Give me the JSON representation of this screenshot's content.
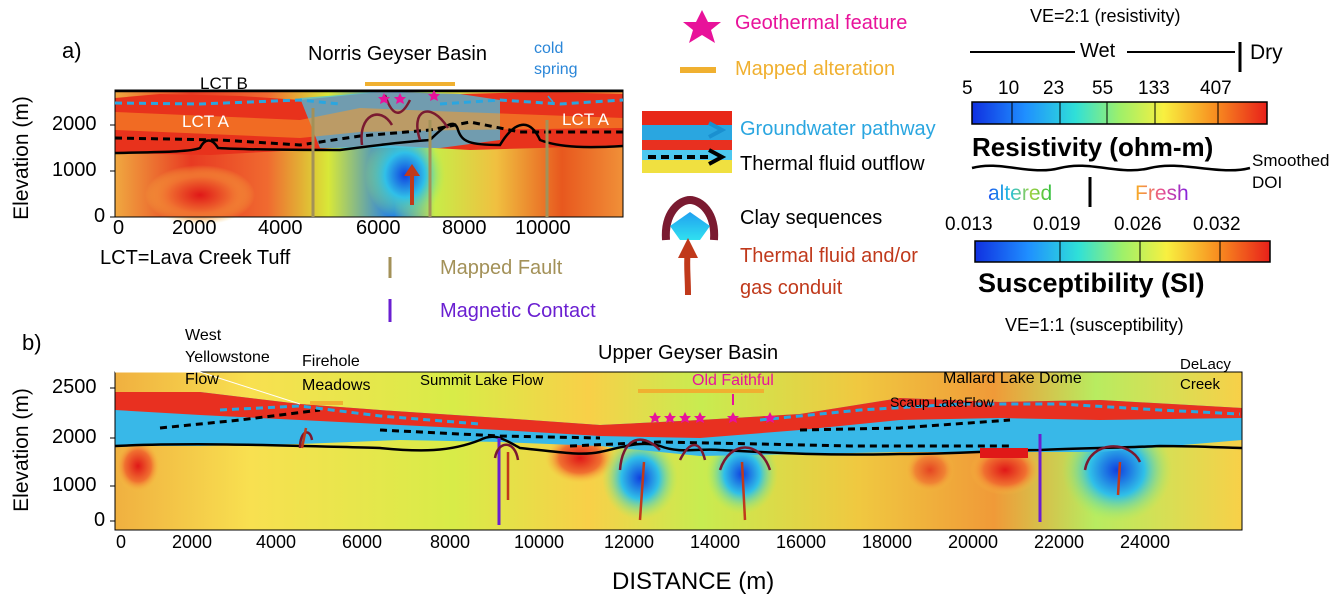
{
  "panel_a": {
    "letter": "a)",
    "title": "Norris Geyser Basin",
    "ylabel": "Elevation (m)",
    "yticks": [
      "2000",
      "1000",
      "0"
    ],
    "xticks": [
      "0",
      "2000",
      "4000",
      "6000",
      "8000",
      "10000"
    ],
    "labels": {
      "lct_b": "LCT B",
      "lct_a_left": "LCT A",
      "lct_a_right": "LCT A",
      "cold_spring": "cold\nspring",
      "lct_note": "LCT=Lava Creek Tuff"
    }
  },
  "panel_b": {
    "letter": "b)",
    "title": "Upper Geyser Basin",
    "ylabel": "Elevation (m)",
    "yticks": [
      "2500",
      "2000",
      "1000",
      "0"
    ],
    "xticks": [
      "0",
      "2000",
      "4000",
      "6000",
      "8000",
      "10000",
      "12000",
      "14000",
      "16000",
      "18000",
      "20000",
      "22000",
      "24000"
    ],
    "xlabel": "DISTANCE (m)",
    "labels": {
      "west_yellowstone": "West\nYellowstone\nFlow",
      "firehole": "Firehole\nMeadows",
      "summit_lake": "Summit Lake Flow",
      "old_faithful": "Old Faithful",
      "mallard": "Mallard Lake  Dome",
      "scaup": "Scaup LakeFlow",
      "delacy": "DeLacy\nCreek"
    }
  },
  "legend": {
    "geothermal_feature": "Geothermal feature",
    "mapped_alteration": "Mapped alteration",
    "groundwater_pathway": "Groundwater pathway",
    "thermal_outflow": "Thermal fluid outflow",
    "clay_sequences": "Clay sequences",
    "conduit": "Thermal fluid and/or\ngas conduit",
    "mapped_fault": "Mapped Fault",
    "magnetic_contact": "Magnetic Contact"
  },
  "colorbars": {
    "ve_resistivity": "VE=2:1 (resistivity)",
    "wet": "Wet",
    "dry": "Dry",
    "resistivity_ticks": [
      "5",
      "10",
      "23",
      "55",
      "133",
      "407"
    ],
    "resistivity_title": "Resistivity (ohm-m)",
    "smoothed_doi": "Smoothed\nDOI",
    "altered": "altered",
    "fresh": "Fresh",
    "susceptibility_ticks": [
      "0.013",
      "0.019",
      "0.026",
      "0.032"
    ],
    "susceptibility_title": "Susceptibility (SI)",
    "ve_susceptibility": "VE=1:1 (susceptibility)"
  },
  "colors": {
    "geothermal": "#e8129a",
    "alteration": "#f0b030",
    "groundwater": "#2aa6e0",
    "conduit": "#c0391b",
    "clay": "#7a1a30",
    "fault": "#a39158",
    "magnetic": "#6a1fd1"
  }
}
